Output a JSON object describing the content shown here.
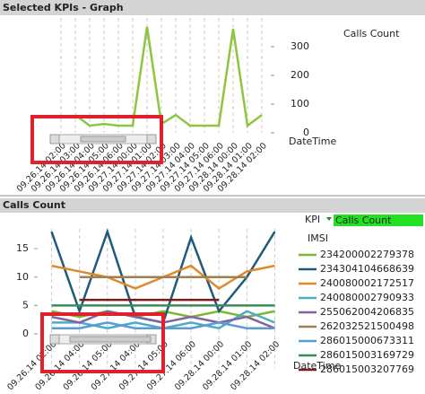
{
  "chart_data": [
    {
      "type": "line",
      "title": "Selected KPIs - Graph",
      "x_label": "DateTime",
      "y_axis_side": "right",
      "categories": [
        "09.26.14 02:00",
        "09.26.14 03:00",
        "09.26.14 04:00",
        "09.26.14 05:00",
        "09.26.14 06:00",
        "09.27.14 00:00",
        "09.27.14 01:00",
        "09.27.14 02:00",
        "09.27.14 03:00",
        "09.27.14 04:00",
        "09.27.14 05:00",
        "09.27.14 06:00",
        "09.28.14 00:00",
        "09.28.14 01:00",
        "09.28.14 02:00"
      ],
      "series": [
        {
          "name": "Calls Count",
          "color": "#8cc63f",
          "values": [
            null,
            62,
            25,
            31,
            25,
            25,
            369,
            31,
            62,
            25,
            25,
            25,
            362,
            25,
            62
          ]
        }
      ],
      "ylim": [
        0,
        400
      ],
      "yticks": [
        0,
        100,
        200,
        300
      ],
      "grid": "vertical-dashed"
    },
    {
      "type": "line",
      "title": "Calls Count",
      "x_label": "DateTime",
      "y_axis_side": "left",
      "kpi_label": "KPI",
      "kpi_value": "Calls Count",
      "legend_title": "IMSI",
      "categories": [
        "09.26.14 02:00",
        "09.26.14 04:00",
        "09.26.14 05:00",
        "09.27.14 04:00",
        "09.27.14 05:00",
        "09.27.14 06:00",
        "09.28.14 00:00",
        "09.28.14 01:00",
        "09.28.14 02:00"
      ],
      "series": [
        {
          "name": "234200002279378",
          "color": "#7cb82f",
          "values": [
            4,
            3,
            4,
            3,
            4,
            3,
            4,
            3,
            4
          ]
        },
        {
          "name": "234304104668639",
          "color": "#1f5b7a",
          "values": [
            18,
            4,
            18,
            3,
            2,
            17,
            4,
            10,
            18
          ]
        },
        {
          "name": "240080002172517",
          "color": "#e0892b",
          "values": [
            12,
            11,
            10,
            8,
            10,
            12,
            8,
            11,
            12
          ]
        },
        {
          "name": "240080002790933",
          "color": "#4bacc6",
          "values": [
            2,
            2,
            1,
            2,
            1,
            2,
            1,
            4,
            2
          ]
        },
        {
          "name": "255062004206835",
          "color": "#8064a2",
          "values": [
            3,
            2,
            4,
            3,
            2,
            3,
            2,
            3,
            1
          ]
        },
        {
          "name": "262032521500498",
          "color": "#a0804f",
          "values": [
            null,
            10,
            10,
            10,
            10,
            10,
            10,
            10,
            null
          ]
        },
        {
          "name": "286015000673311",
          "color": "#5b9bd5",
          "values": [
            1,
            1,
            2,
            1,
            1,
            1,
            2,
            1,
            1
          ]
        },
        {
          "name": "286015003169729",
          "color": "#3a8a5a",
          "values": [
            5,
            5,
            5,
            5,
            5,
            5,
            5,
            5,
            5
          ]
        },
        {
          "name": "286015003207769",
          "color": "#7b1c1c",
          "values": [
            null,
            6,
            6,
            6,
            6,
            6,
            6,
            null,
            null
          ]
        }
      ],
      "ylim": [
        -6,
        18.5
      ],
      "yticks": [
        0,
        5,
        10,
        15
      ],
      "grid": "vertical-dashed"
    }
  ]
}
